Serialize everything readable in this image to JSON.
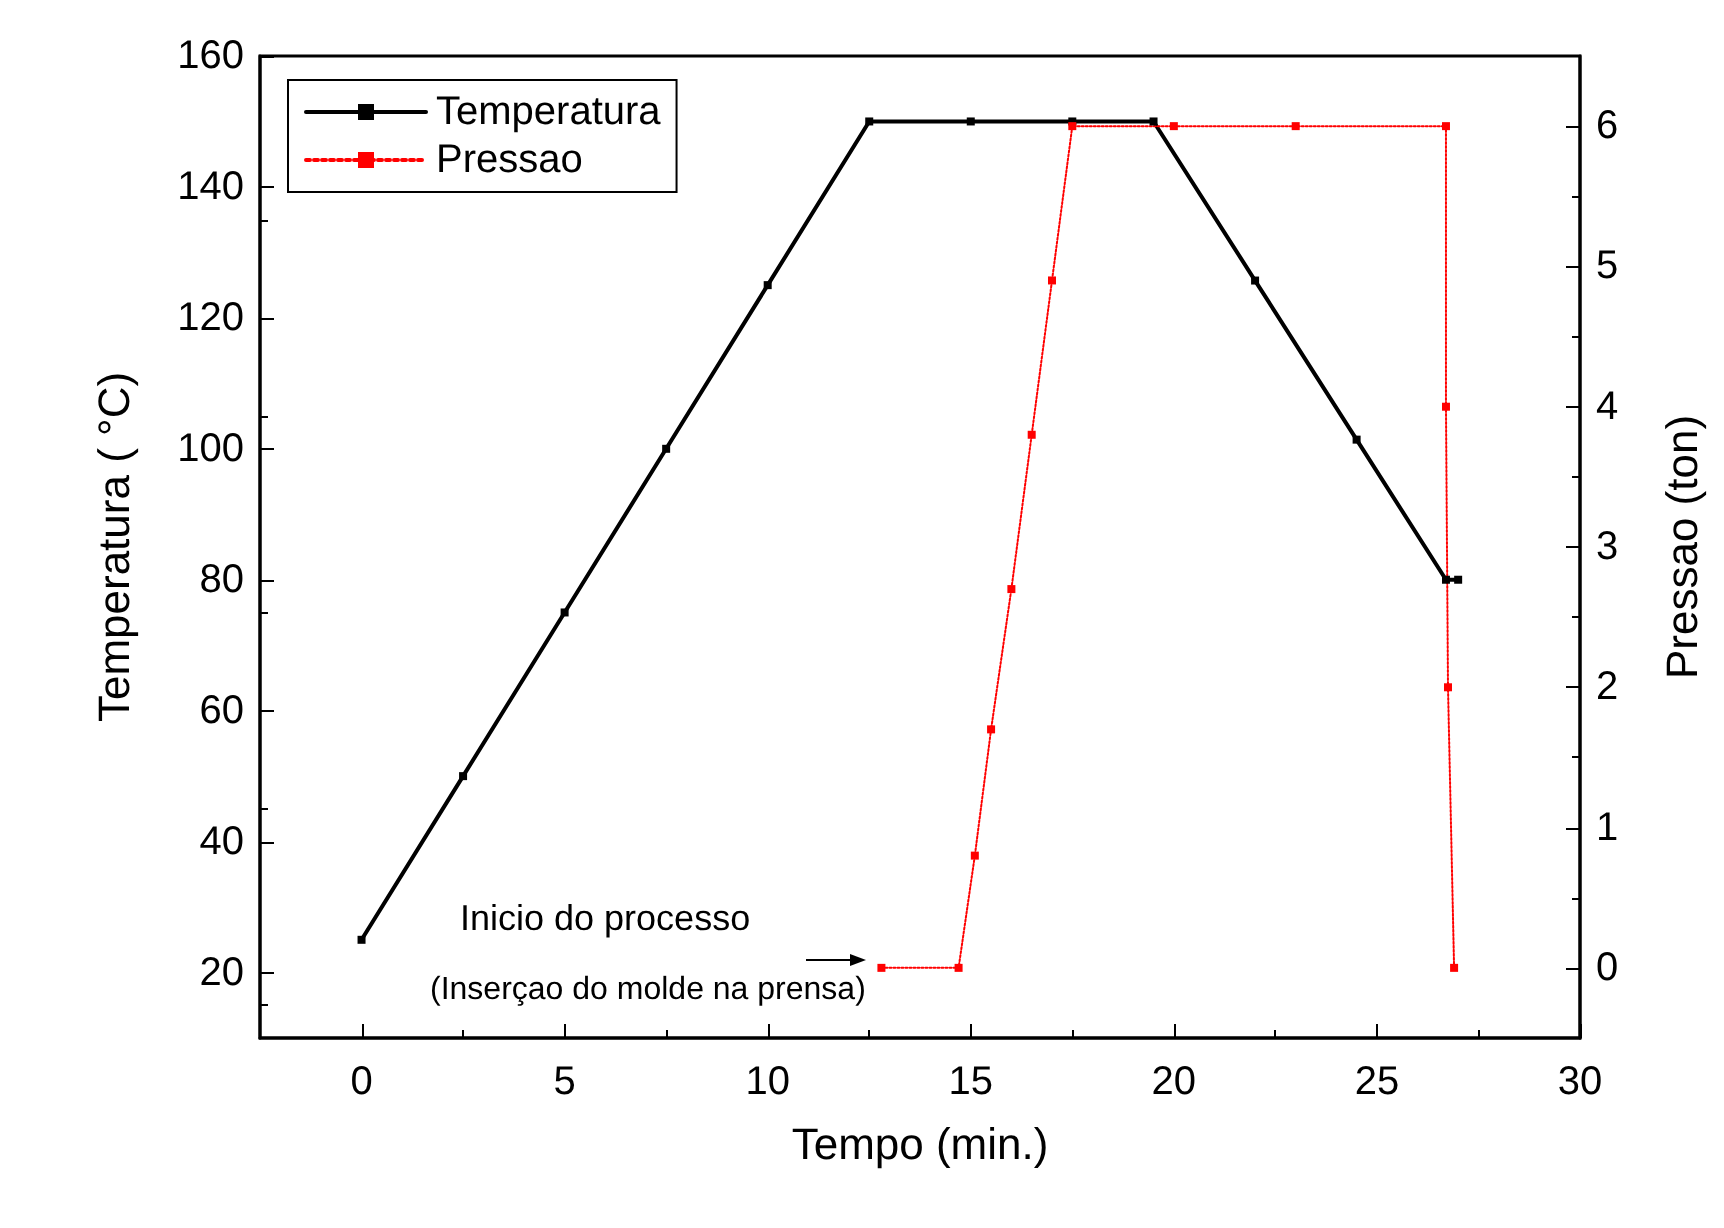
{
  "chart_data": {
    "type": "line",
    "xlabel": "Tempo (min.)",
    "ylabel": "Temperatura ( °C)",
    "y2label": "Pressao (ton)",
    "xlim": [
      -2.5,
      30
    ],
    "xticks": [
      0,
      5,
      10,
      15,
      20,
      25,
      30
    ],
    "ylim": [
      10,
      160
    ],
    "yticks": [
      20,
      40,
      60,
      80,
      100,
      120,
      140,
      160
    ],
    "y2lim": [
      -0.5,
      6.5
    ],
    "y2ticks": [
      0,
      1,
      2,
      3,
      4,
      5,
      6
    ],
    "legend": "top left",
    "grid": false,
    "marker": "square",
    "annotations": [
      "Inicio do processo",
      "(Inserçao do molde na prensa)"
    ],
    "series": [
      {
        "name": "Temperatura",
        "color": "#000000",
        "line_style": "solid",
        "x": [
          0,
          2.5,
          5,
          7.5,
          10,
          12.5,
          15,
          17.5,
          19.5,
          22,
          24.5,
          26.7,
          27
        ],
        "values": [
          25,
          50,
          75,
          100,
          125,
          150,
          150,
          150,
          150,
          125.7,
          101.4,
          80,
          80
        ]
      },
      {
        "name": "Pressao",
        "color": "#ff0000",
        "line_style": "dotted",
        "axis": "y2",
        "x": [
          12.8,
          14.7,
          15.1,
          15.5,
          16,
          16.5,
          17,
          17.5,
          20,
          23,
          26.7,
          26.7,
          26.75,
          26.9
        ],
        "values": [
          0,
          0,
          0.8,
          1.7,
          2.7,
          3.8,
          4.9,
          6,
          6,
          6,
          6,
          4,
          2,
          0
        ]
      }
    ]
  }
}
